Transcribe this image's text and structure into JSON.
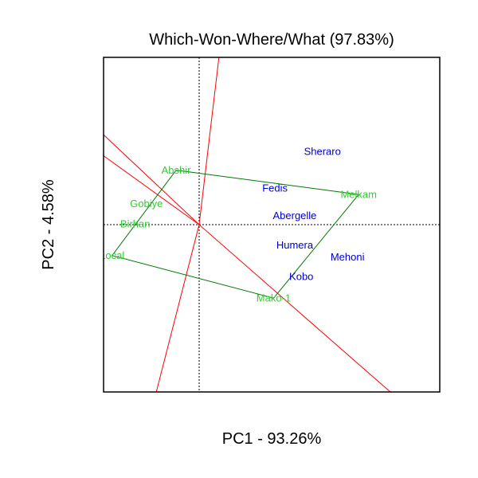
{
  "chart_data": {
    "type": "scatter",
    "title": "Which-Won-Where/What (97.83%)",
    "xlabel": "PC1 - 93.26%",
    "ylabel": "PC2 - 4.58%",
    "xlim": [
      -1.45,
      3.65
    ],
    "ylim": [
      -2.55,
      2.55
    ],
    "grid": false,
    "reference_lines": {
      "x": 0,
      "y": 0
    },
    "colors": {
      "genotype": "#33cc33",
      "environment": "#0000cc",
      "hull": "#007700",
      "sector": "#ff0000"
    },
    "genotypes": [
      {
        "label": "Abshir",
        "x": -0.35,
        "y": 0.83
      },
      {
        "label": "Gobiye",
        "x": -0.8,
        "y": 0.32
      },
      {
        "label": "Birhan",
        "x": -0.97,
        "y": 0.01
      },
      {
        "label": "Local",
        "x": -1.32,
        "y": -0.47
      },
      {
        "label": "Mako-1",
        "x": 1.13,
        "y": -1.12
      },
      {
        "label": "Melkam",
        "x": 2.42,
        "y": 0.46
      }
    ],
    "environments": [
      {
        "label": "Sheraro",
        "x": 1.87,
        "y": 1.12
      },
      {
        "label": "Fedis",
        "x": 1.15,
        "y": 0.56
      },
      {
        "label": "Abergelle",
        "x": 1.45,
        "y": 0.14
      },
      {
        "label": "Humera",
        "x": 1.45,
        "y": -0.31
      },
      {
        "label": "Mehoni",
        "x": 2.25,
        "y": -0.49
      },
      {
        "label": "Kobo",
        "x": 1.55,
        "y": -0.79
      }
    ],
    "hull": [
      "Abshir",
      "Melkam",
      "Mako-1",
      "Local",
      "Abshir"
    ],
    "sector_rays": [
      {
        "dx": 0.3,
        "dy": 2.55
      },
      {
        "dx": -0.65,
        "dy": -2.55
      },
      {
        "dx": -1.45,
        "dy": 1.37
      },
      {
        "dx": -1.45,
        "dy": 1.05
      },
      {
        "dx": 2.9,
        "dy": -2.55
      }
    ]
  }
}
